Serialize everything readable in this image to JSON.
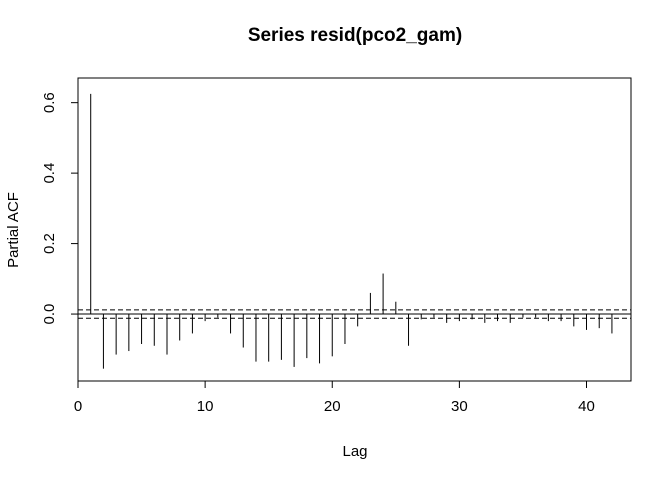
{
  "chart_data": {
    "type": "bar",
    "title": "Series  resid(pco2_gam)",
    "xlabel": "Lag",
    "ylabel": "Partial ACF",
    "xlim": [
      0,
      43.5
    ],
    "ylim": [
      -0.19,
      0.67
    ],
    "xticks": [
      0,
      10,
      20,
      30,
      40
    ],
    "yticks": [
      0.0,
      0.2,
      0.4,
      0.6
    ],
    "ytick_labels": [
      "0.0",
      "0.2",
      "0.4",
      "0.6"
    ],
    "ci": 0.012,
    "lags": [
      1,
      2,
      3,
      4,
      5,
      6,
      7,
      8,
      9,
      10,
      11,
      12,
      13,
      14,
      15,
      16,
      17,
      18,
      19,
      20,
      21,
      22,
      23,
      24,
      25,
      26,
      27,
      28,
      29,
      30,
      31,
      32,
      33,
      34,
      35,
      36,
      37,
      38,
      39,
      40,
      41,
      42
    ],
    "values": [
      0.625,
      -0.155,
      -0.115,
      -0.105,
      -0.085,
      -0.09,
      -0.115,
      -0.075,
      -0.055,
      -0.02,
      -0.01,
      -0.055,
      -0.095,
      -0.135,
      -0.135,
      -0.13,
      -0.15,
      -0.125,
      -0.14,
      -0.12,
      -0.085,
      -0.035,
      0.06,
      0.115,
      0.035,
      -0.09,
      -0.015,
      -0.01,
      -0.025,
      -0.02,
      -0.015,
      -0.025,
      -0.02,
      -0.025,
      -0.01,
      -0.01,
      -0.02,
      -0.02,
      -0.035,
      -0.045,
      -0.04,
      -0.055
    ]
  }
}
